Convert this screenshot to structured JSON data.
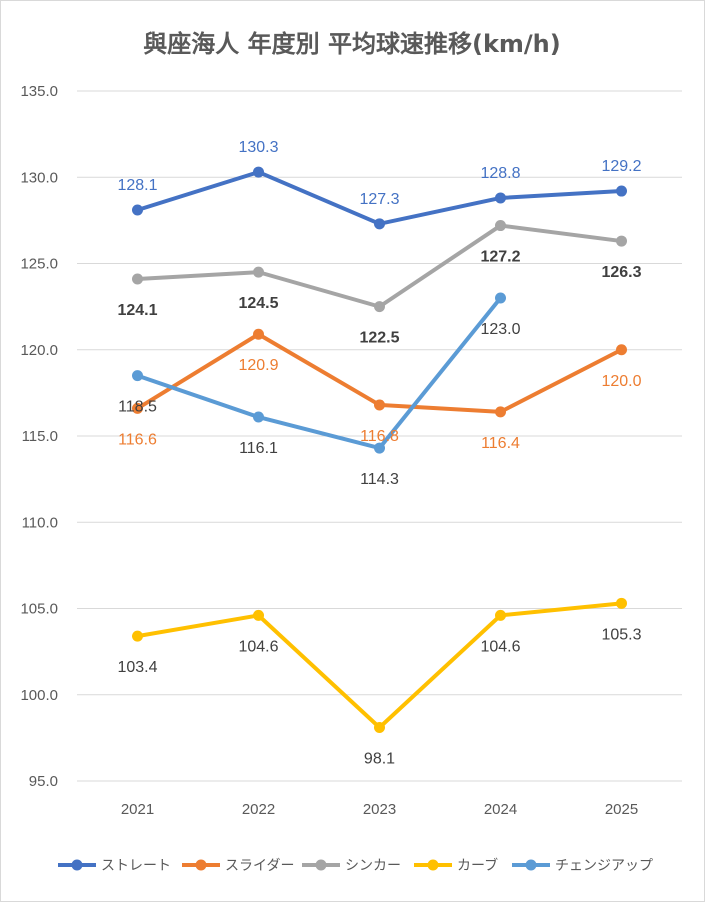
{
  "chart_data": {
    "type": "line",
    "title": "與座海人 年度別 平均球速推移(km/h)",
    "categories": [
      "2021",
      "2022",
      "2023",
      "2024",
      "2025"
    ],
    "ylim": [
      95,
      135
    ],
    "yticks": [
      "95.0",
      "100.0",
      "105.0",
      "110.0",
      "115.0",
      "120.0",
      "125.0",
      "130.0",
      "135.0"
    ],
    "grid": true,
    "legend_position": "bottom",
    "series": [
      {
        "name": "ストレート",
        "color": "#4472C4",
        "label_color": "#4472C4",
        "label_bold": false,
        "values": [
          128.1,
          130.3,
          127.3,
          128.8,
          129.2
        ],
        "labels": [
          "128.1",
          "130.3",
          "127.3",
          "128.8",
          "129.2"
        ],
        "label_pos": "above"
      },
      {
        "name": "スライダー",
        "color": "#ED7D31",
        "label_color": "#ED7D31",
        "label_bold": false,
        "values": [
          116.6,
          120.9,
          116.8,
          116.4,
          120.0
        ],
        "labels": [
          "116.6",
          "120.9",
          "116.8",
          "116.4",
          "120.0"
        ],
        "label_pos": "below"
      },
      {
        "name": "シンカー",
        "color": "#A5A5A5",
        "label_color": "#404040",
        "label_bold": true,
        "values": [
          124.1,
          124.5,
          122.5,
          127.2,
          126.3
        ],
        "labels": [
          "124.1",
          "124.5",
          "122.5",
          "127.2",
          "126.3"
        ],
        "label_pos": "below"
      },
      {
        "name": "カーブ",
        "color": "#FFC000",
        "label_color": "#404040",
        "label_bold": false,
        "values": [
          103.4,
          104.6,
          98.1,
          104.6,
          105.3
        ],
        "labels": [
          "103.4",
          "104.6",
          "98.1",
          "104.6",
          "105.3"
        ],
        "label_pos": "below"
      },
      {
        "name": "チェンジアップ",
        "color": "#5B9BD5",
        "label_color": "#404040",
        "label_bold": false,
        "values": [
          118.5,
          116.1,
          114.3,
          123.0,
          null
        ],
        "labels": [
          "118.5",
          "116.1",
          "114.3",
          "123.0",
          null
        ],
        "label_pos": "below"
      }
    ]
  }
}
